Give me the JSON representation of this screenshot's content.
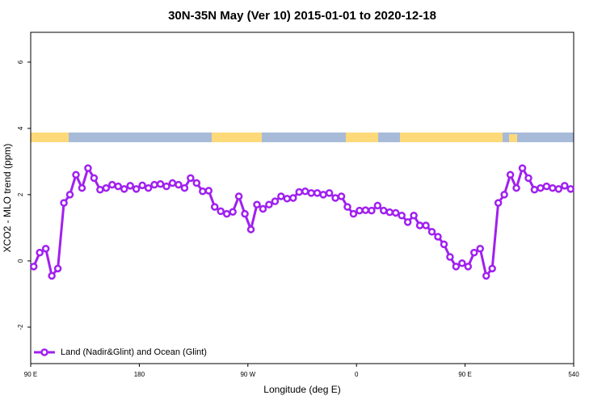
{
  "chart_data": {
    "type": "line",
    "title": "30N-35N May (Ver 10)   2015-01-01 to 2020-12-18",
    "x_label": "Longitude (deg E)",
    "y_label": "XCO2 - MLO trend (ppm)",
    "xlim": [
      90,
      540
    ],
    "ylim": [
      -3.1,
      6.9
    ],
    "xticks": [
      {
        "value": 90,
        "label": "90 E"
      },
      180,
      {
        "value": 270,
        "label": "90 W"
      },
      {
        "value": 360,
        "label": "0"
      },
      {
        "value": 450,
        "label": "90 E"
      },
      540
    ],
    "yticks": [
      -2,
      0,
      2,
      4,
      6
    ],
    "legend": "bottom-left",
    "x": [
      92.5,
      97.5,
      102.5,
      107.5,
      112.5,
      117.5,
      122.5,
      127.5,
      132.5,
      137.5,
      142.5,
      147.5,
      152.5,
      157.5,
      162.5,
      167.5,
      172.5,
      177.5,
      182.5,
      187.5,
      192.5,
      197.5,
      202.5,
      207.5,
      212.5,
      217.5,
      222.5,
      227.5,
      232.5,
      237.5,
      242.5,
      247.5,
      252.5,
      257.5,
      262.5,
      267.5,
      272.5,
      277.5,
      282.5,
      287.5,
      292.5,
      297.5,
      302.5,
      307.5,
      312.5,
      317.5,
      322.5,
      327.5,
      332.5,
      337.5,
      342.5,
      347.5,
      352.5,
      357.5,
      362.5,
      367.5,
      372.5,
      377.5,
      382.5,
      387.5,
      392.5,
      397.5,
      402.5,
      407.5,
      412.5,
      417.5,
      422.5,
      427.5,
      432.5,
      437.5,
      442.5,
      447.5,
      452.5,
      457.5,
      462.5,
      467.5,
      472.5,
      477.5,
      482.5,
      487.5,
      492.5,
      497.5,
      502.5,
      507.5,
      512.5,
      517.5,
      522.5,
      527.5,
      532.5,
      537.5
    ],
    "series": [
      {
        "name": "Land (Nadir&Glint) and Ocean (Glint)",
        "color": "#a020f0",
        "values": [
          -0.17,
          0.25,
          0.37,
          -0.45,
          -0.23,
          1.75,
          2.0,
          2.6,
          2.2,
          2.8,
          2.5,
          2.15,
          2.2,
          2.3,
          2.25,
          2.17,
          2.27,
          2.17,
          2.28,
          2.2,
          2.3,
          2.32,
          2.25,
          2.35,
          2.3,
          2.2,
          2.5,
          2.35,
          2.1,
          2.12,
          1.63,
          1.5,
          1.42,
          1.48,
          1.95,
          1.42,
          0.95,
          1.7,
          1.57,
          1.7,
          1.8,
          1.95,
          1.88,
          1.9,
          2.08,
          2.1,
          2.05,
          2.05,
          2.0,
          2.05,
          1.9,
          1.95,
          1.63,
          1.42,
          1.52,
          1.53,
          1.52,
          1.67,
          1.52,
          1.47,
          1.45,
          1.37,
          1.17,
          1.37,
          1.07,
          1.07,
          0.88,
          0.73,
          0.5,
          0.12,
          -0.17,
          -0.07,
          -0.17,
          0.25,
          0.37,
          -0.45,
          -0.23,
          1.75,
          2.0,
          2.6,
          2.2,
          2.8,
          2.5,
          2.15,
          2.2,
          2.25,
          2.2,
          2.17,
          2.27,
          2.17
        ]
      }
    ]
  }
}
